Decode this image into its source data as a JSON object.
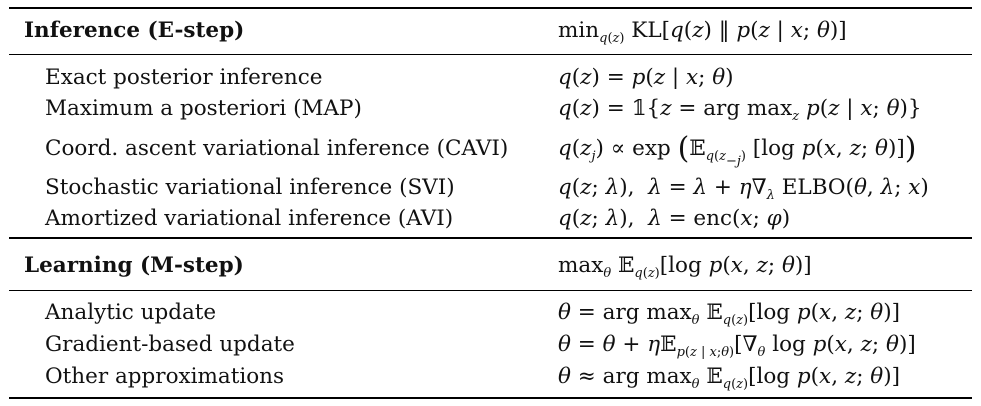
{
  "inference": {
    "heading": "Inference (E-step)",
    "heading_formula": "min_q(z) KL[q(z) ‖ p(z | x; θ)]",
    "rows": [
      {
        "label": "Exact posterior inference",
        "formula": "q(z) = p(z | x; θ)"
      },
      {
        "label": "Maximum a posteriori (MAP)",
        "formula": "q(z) = 𝟙{z = arg max_z p(z | x; θ)}"
      },
      {
        "label": "Coord. ascent variational inference (CAVI)",
        "formula": "q(z_j) ∝ exp(𝔼_q(z_−j)[log p(x, z; θ)])"
      },
      {
        "label": "Stochastic variational inference (SVI)",
        "formula": "q(z; λ), λ = λ + η∇_λ ELBO(θ, λ; x)"
      },
      {
        "label": "Amortized variational inference (AVI)",
        "formula": "q(z; λ), λ = enc(x; φ)"
      }
    ]
  },
  "learning": {
    "heading": "Learning (M-step)",
    "heading_formula": "max_θ 𝔼_q(z)[log p(x, z; θ)]",
    "rows": [
      {
        "label": "Analytic update",
        "formula": "θ = arg max_θ 𝔼_q(z)[log p(x, z; θ)]"
      },
      {
        "label": "Gradient-based update",
        "formula": "θ = θ + η𝔼_p(z | x;θ)[∇_θ log p(x, z; θ)]"
      },
      {
        "label": "Other approximations",
        "formula": "θ ≈ arg max_θ 𝔼_q(z)[log p(x, z; θ)]"
      }
    ]
  }
}
